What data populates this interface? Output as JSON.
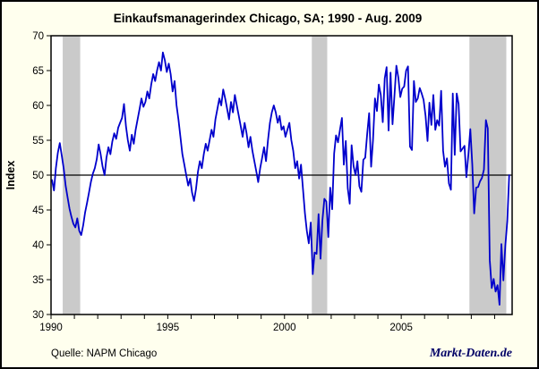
{
  "header": {
    "title": "Einkaufsmanagerindex Chicago, SA; 1990 -  Aug. 2009"
  },
  "footer": {
    "source": "Quelle: NAPM Chicago",
    "watermark": "Markt-Daten.de"
  },
  "colors": {
    "background": "#FFFFEE",
    "plot_background": "#FFFFFF",
    "line": "#0000CC",
    "recession_band": "#CACACA",
    "axis": "#000000",
    "watermark": "#000066"
  },
  "chart_data": {
    "type": "line",
    "title": "Einkaufsmanagerindex Chicago, SA; 1990 -  Aug. 2009",
    "xlabel": "",
    "ylabel": "Index",
    "ylim": [
      30,
      70
    ],
    "ytick_step": 5,
    "ytick_labels": [
      "30",
      "35",
      "40",
      "45",
      "50",
      "55",
      "60",
      "65",
      "70"
    ],
    "xlim": [
      1990,
      2009.75
    ],
    "xticks_labeled": [
      1990,
      1995,
      2000,
      2005
    ],
    "xticks_minor_every_years": 1,
    "grid": false,
    "legend_position": "none",
    "reference_line_y": 50,
    "recession_bands": [
      [
        1990.5,
        1991.25
      ],
      [
        2001.17,
        2001.83
      ],
      [
        2007.92,
        2009.5
      ]
    ],
    "series": [
      {
        "name": "Einkaufsmanagerindex Chicago (SA)",
        "start_year": 1990,
        "frequency": "monthly",
        "end_label": "Aug. 2009",
        "values": [
          49.3,
          47.8,
          51.0,
          53.2,
          54.6,
          52.8,
          51.0,
          48.5,
          46.8,
          45.2,
          44.0,
          43.0,
          42.5,
          43.8,
          42.0,
          41.4,
          42.8,
          44.6,
          46.0,
          47.5,
          49.0,
          50.2,
          51.0,
          52.3,
          54.4,
          53.0,
          51.2,
          50.0,
          52.5,
          54.0,
          53.0,
          54.8,
          56.0,
          55.2,
          56.8,
          57.5,
          58.2,
          60.2,
          57.0,
          55.0,
          53.5,
          55.8,
          54.5,
          56.5,
          58.0,
          59.5,
          61.0,
          59.8,
          60.5,
          62.0,
          61.0,
          63.0,
          64.5,
          63.5,
          65.0,
          66.2,
          65.0,
          67.6,
          66.5,
          64.8,
          66.0,
          64.5,
          62.0,
          63.5,
          60.0,
          58.0,
          55.5,
          53.0,
          51.5,
          50.0,
          48.5,
          49.5,
          47.5,
          46.3,
          48.0,
          50.5,
          52.0,
          51.0,
          53.0,
          54.5,
          53.5,
          55.0,
          56.5,
          55.5,
          58.0,
          59.5,
          61.0,
          60.0,
          62.3,
          61.0,
          59.5,
          58.0,
          60.5,
          59.0,
          61.5,
          60.0,
          58.5,
          57.0,
          55.5,
          57.5,
          56.0,
          54.0,
          55.5,
          53.5,
          52.0,
          50.5,
          49.0,
          51.0,
          52.5,
          54.0,
          52.0,
          55.0,
          57.5,
          59.0,
          60.0,
          59.0,
          57.5,
          58.5,
          56.5,
          57.0,
          55.5,
          56.5,
          57.5,
          55.0,
          53.5,
          51.0,
          52.0,
          49.5,
          51.5,
          48.0,
          44.5,
          42.0,
          40.2,
          43.2,
          35.8,
          38.9,
          38.7,
          44.4,
          38.0,
          43.5,
          46.6,
          46.2,
          41.1,
          48.2,
          45.1,
          53.1,
          55.7,
          54.7,
          56.5,
          58.2,
          51.5,
          54.9,
          48.1,
          45.9,
          54.3,
          51.3,
          50.0,
          52.0,
          48.4,
          47.6,
          52.2,
          52.5,
          55.9,
          58.9,
          51.2,
          55.0,
          61.0,
          59.2,
          63.0,
          61.5,
          57.6,
          63.9,
          65.5,
          56.4,
          64.7,
          57.3,
          61.3,
          65.7,
          64.0,
          61.2,
          62.4,
          62.7,
          65.0,
          65.6,
          54.1,
          53.6,
          63.5,
          60.5,
          61.0,
          62.5,
          61.7,
          60.8,
          58.5,
          54.9,
          60.4,
          57.2,
          61.5,
          56.5,
          57.9,
          57.1,
          62.1,
          53.5,
          51.2,
          52.4,
          48.8,
          47.9,
          61.7,
          52.9,
          61.7,
          60.2,
          53.4,
          53.8,
          54.2,
          49.7,
          52.9,
          56.6,
          51.5,
          44.5,
          48.2,
          48.3,
          49.1,
          49.6,
          50.8,
          57.9,
          56.7,
          37.8,
          33.8,
          35.1,
          33.3,
          34.2,
          31.4,
          40.1,
          34.9,
          39.9,
          43.4,
          50.0
        ]
      }
    ]
  }
}
